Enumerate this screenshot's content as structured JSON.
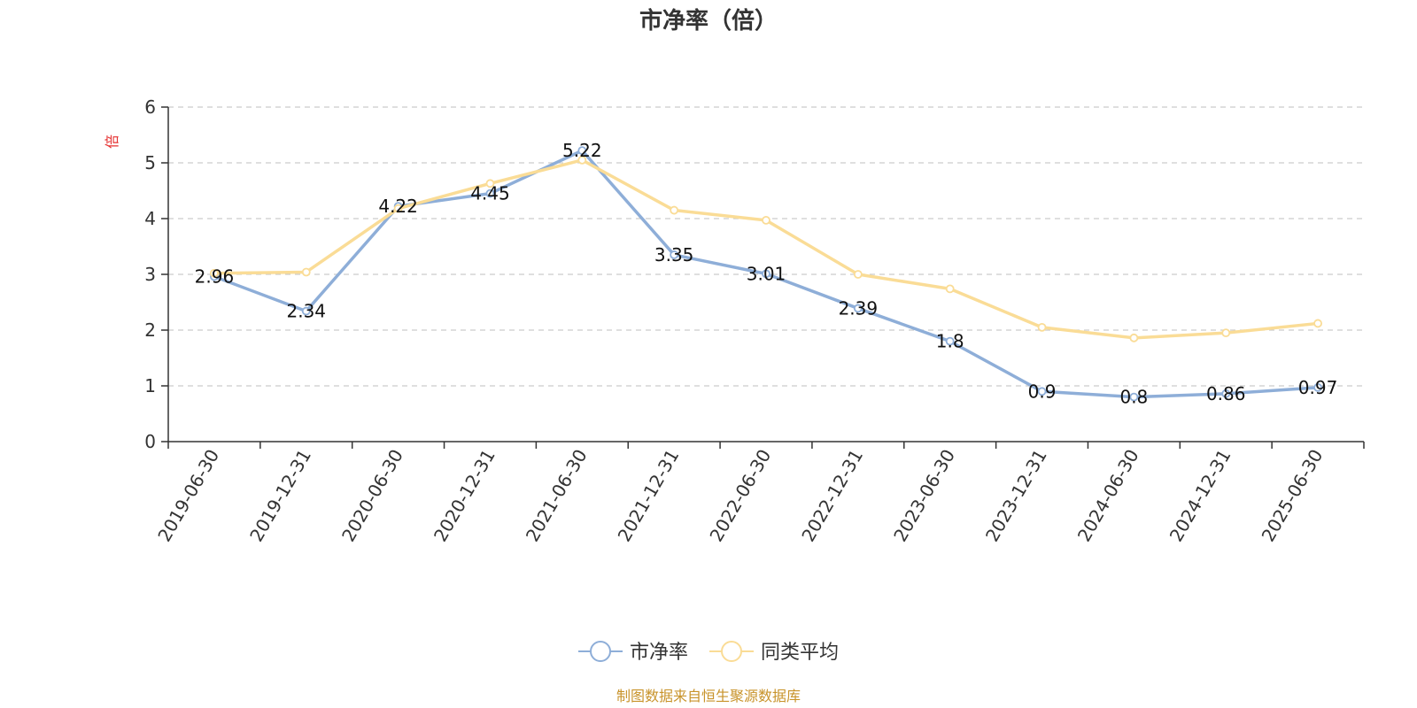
{
  "chart_data": {
    "type": "line",
    "title": "市净率（倍）",
    "ylabel": "倍",
    "ylim": [
      0,
      6
    ],
    "yticks": [
      0,
      1,
      2,
      3,
      4,
      5,
      6
    ],
    "grid": true,
    "legend_position": "bottom",
    "categories": [
      "2019-06-30",
      "2019-12-31",
      "2020-06-30",
      "2020-12-31",
      "2021-06-30",
      "2021-12-31",
      "2022-06-30",
      "2022-12-31",
      "2023-06-30",
      "2023-12-31",
      "2024-06-30",
      "2024-12-31",
      "2025-06-30"
    ],
    "series": [
      {
        "name": "市净率",
        "color": "#8eaed8",
        "show_labels": true,
        "labels": [
          "2.96",
          "2.34",
          "4.22",
          "4.45",
          "5.22",
          "3.35",
          "3.01",
          "2.39",
          "1.8",
          "0.9",
          "0.8",
          "0.86",
          "0.97"
        ],
        "values": [
          2.96,
          2.34,
          4.22,
          4.45,
          5.22,
          3.35,
          3.01,
          2.39,
          1.8,
          0.9,
          0.8,
          0.86,
          0.97
        ]
      },
      {
        "name": "同类平均",
        "color": "#fadc96",
        "show_labels": false,
        "values": [
          3.02,
          3.04,
          4.18,
          4.63,
          5.05,
          4.15,
          3.97,
          3.0,
          2.74,
          2.05,
          1.86,
          1.95,
          2.12
        ]
      }
    ]
  },
  "source_note": "制图数据来自恒生聚源数据库"
}
